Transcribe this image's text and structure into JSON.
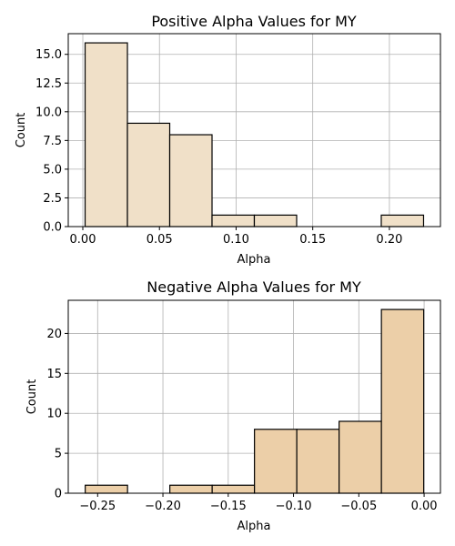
{
  "chart_data": [
    {
      "type": "bar",
      "title": "Positive Alpha Values for MY",
      "xlabel": "Alpha",
      "ylabel": "Count",
      "color": "#f0e0c8",
      "edgecolor": "#000000",
      "grid": true,
      "bins": [
        {
          "start": 0.0015,
          "end": 0.0291,
          "count": 16
        },
        {
          "start": 0.0291,
          "end": 0.0567,
          "count": 9
        },
        {
          "start": 0.0567,
          "end": 0.0843,
          "count": 8
        },
        {
          "start": 0.0843,
          "end": 0.1119,
          "count": 1
        },
        {
          "start": 0.1119,
          "end": 0.1395,
          "count": 1
        },
        {
          "start": 0.1395,
          "end": 0.1671,
          "count": 0
        },
        {
          "start": 0.1671,
          "end": 0.1947,
          "count": 0
        },
        {
          "start": 0.1947,
          "end": 0.2223,
          "count": 1
        }
      ],
      "xlim": [
        -0.0095,
        0.2333
      ],
      "ylim": [
        0,
        16.8
      ],
      "xticks": [
        0.0,
        0.05,
        0.1,
        0.15,
        0.2
      ],
      "xtick_labels": [
        "0.00",
        "0.05",
        "0.10",
        "0.15",
        "0.20"
      ],
      "yticks": [
        0,
        2.5,
        5,
        7.5,
        10,
        12.5,
        15
      ],
      "ytick_labels": [
        "0.0",
        "2.5",
        "5.0",
        "7.5",
        "10.0",
        "12.5",
        "15.0"
      ]
    },
    {
      "type": "bar",
      "title": "Negative Alpha Values for MY",
      "xlabel": "Alpha",
      "ylabel": "Count",
      "color": "#eccfa8",
      "edgecolor": "#000000",
      "grid": true,
      "bins": [
        {
          "start": -0.2595,
          "end": -0.2271,
          "count": 1
        },
        {
          "start": -0.2271,
          "end": -0.1947,
          "count": 0
        },
        {
          "start": -0.1947,
          "end": -0.1623,
          "count": 1
        },
        {
          "start": -0.1623,
          "end": -0.1299,
          "count": 1
        },
        {
          "start": -0.1299,
          "end": -0.0975,
          "count": 8
        },
        {
          "start": -0.0975,
          "end": -0.0651,
          "count": 8
        },
        {
          "start": -0.0651,
          "end": -0.0327,
          "count": 9
        },
        {
          "start": -0.0327,
          "end": -0.0003,
          "count": 23
        }
      ],
      "xlim": [
        -0.2725,
        0.0125
      ],
      "ylim": [
        0,
        24.15
      ],
      "xticks": [
        -0.25,
        -0.2,
        -0.15,
        -0.1,
        -0.05,
        0.0
      ],
      "xtick_labels": [
        "−0.25",
        "−0.20",
        "−0.15",
        "−0.10",
        "−0.05",
        "0.00"
      ],
      "yticks": [
        0,
        5,
        10,
        15,
        20
      ],
      "ytick_labels": [
        "0",
        "5",
        "10",
        "15",
        "20"
      ]
    }
  ]
}
